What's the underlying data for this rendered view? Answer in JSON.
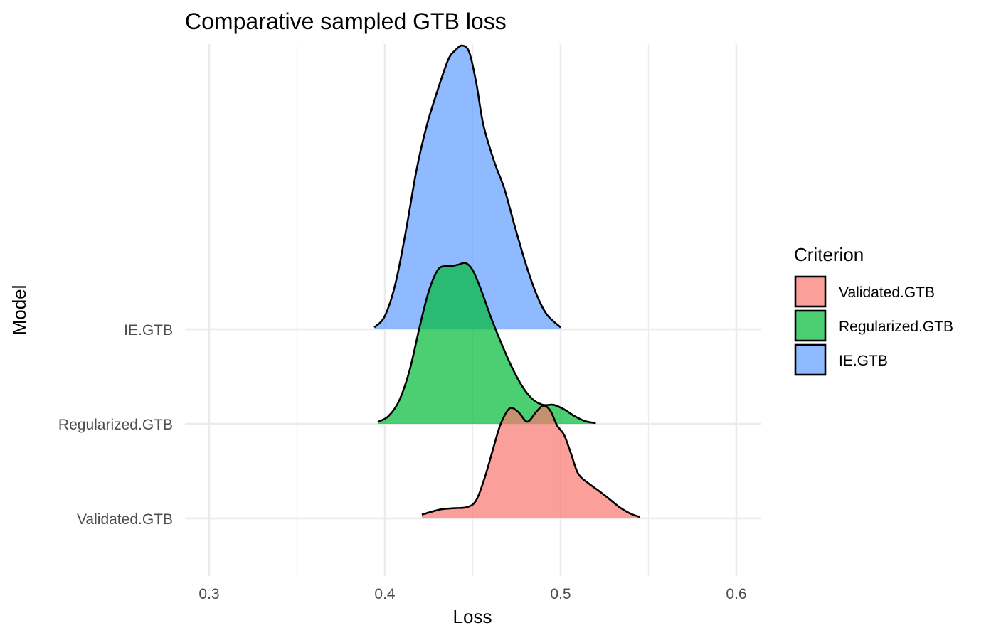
{
  "chart_data": {
    "type": "ridgeline",
    "title": "Comparative sampled GTB loss",
    "xlabel": "Loss",
    "ylabel": "Model",
    "xlim": [
      0.25,
      0.615
    ],
    "x_ticks": [
      0.3,
      0.4,
      0.5,
      0.6
    ],
    "x_tick_labels": [
      "0.3",
      "0.4",
      "0.5",
      "0.6"
    ],
    "categories": [
      "Validated.GTB",
      "Regularized.GTB",
      "IE.GTB"
    ],
    "grid": true,
    "legend": {
      "title": "Criterion",
      "position": "right",
      "entries": [
        "Validated.GTB",
        "Regularized.GTB",
        "IE.GTB"
      ]
    },
    "series": [
      {
        "name": "Validated.GTB",
        "color": "#F8766D",
        "baseline": "Validated.GTB",
        "x": [
          0.421,
          0.432,
          0.44,
          0.447,
          0.452,
          0.457,
          0.462,
          0.466,
          0.471,
          0.476,
          0.481,
          0.486,
          0.49,
          0.494,
          0.498,
          0.502,
          0.506,
          0.51,
          0.516,
          0.522,
          0.528,
          0.534,
          0.54,
          0.545
        ],
        "density": [
          0.1,
          0.24,
          0.27,
          0.3,
          0.48,
          1.1,
          1.9,
          2.5,
          2.9,
          2.8,
          2.55,
          2.8,
          2.97,
          2.85,
          2.45,
          2.2,
          1.7,
          1.18,
          0.92,
          0.72,
          0.5,
          0.28,
          0.12,
          0.04
        ]
      },
      {
        "name": "Regularized.GTB",
        "color": "#00BA38",
        "baseline": "Regularized.GTB",
        "x": [
          0.396,
          0.402,
          0.408,
          0.414,
          0.42,
          0.425,
          0.43,
          0.434,
          0.438,
          0.442,
          0.446,
          0.45,
          0.455,
          0.46,
          0.466,
          0.472,
          0.478,
          0.484,
          0.49,
          0.496,
          0.502,
          0.508,
          0.514,
          0.52
        ],
        "density": [
          0.05,
          0.2,
          0.6,
          1.4,
          2.6,
          3.5,
          4.05,
          4.16,
          4.16,
          4.2,
          4.24,
          4.05,
          3.5,
          2.85,
          2.15,
          1.52,
          1.0,
          0.65,
          0.5,
          0.5,
          0.38,
          0.2,
          0.07,
          0.02
        ]
      },
      {
        "name": "IE.GTB",
        "color": "#619CFF",
        "baseline": "IE.GTB",
        "x": [
          0.394,
          0.4,
          0.406,
          0.412,
          0.418,
          0.424,
          0.43,
          0.436,
          0.44,
          0.444,
          0.448,
          0.452,
          0.456,
          0.462,
          0.468,
          0.474,
          0.48,
          0.486,
          0.492,
          0.5
        ],
        "density": [
          0.05,
          0.35,
          1.2,
          2.6,
          4.2,
          5.4,
          6.3,
          7.1,
          7.35,
          7.48,
          7.3,
          6.5,
          5.4,
          4.45,
          3.7,
          2.7,
          1.75,
          0.95,
          0.4,
          0.05
        ]
      }
    ]
  }
}
